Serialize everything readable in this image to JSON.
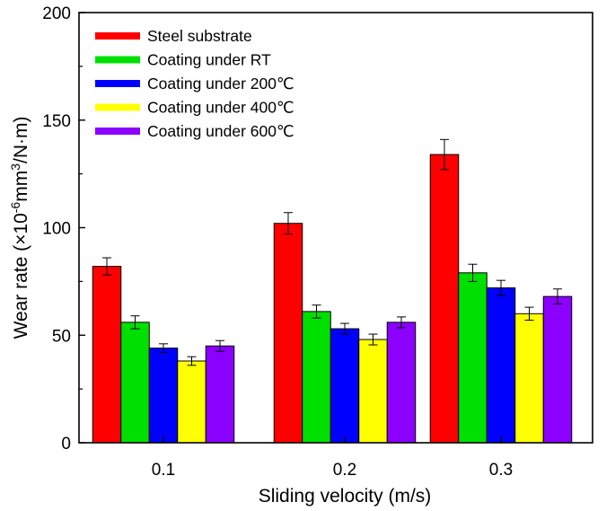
{
  "chart_data": {
    "type": "bar",
    "title": "",
    "xlabel": "Sliding velocity (m/s)",
    "ylabel": "Wear rate (×10",
    "ylabel_exp1": "-6",
    "ylabel_mid": "mm",
    "ylabel_exp2": "3",
    "ylabel_end": "/N·m)",
    "categories": [
      "0.1",
      "0.2",
      "0.3"
    ],
    "ylim": [
      0,
      200
    ],
    "yticks": [
      0,
      50,
      100,
      150,
      200
    ],
    "ytick_labels": [
      "0",
      "50",
      "100",
      "150",
      "200"
    ],
    "grid": false,
    "legend_position": "top-left",
    "series": [
      {
        "name": "Steel substrate",
        "color": "#ff0000",
        "values": [
          82,
          102,
          134
        ],
        "errors": [
          4,
          5,
          7
        ]
      },
      {
        "name": "Coating under RT",
        "color": "#00e000",
        "values": [
          56,
          61,
          79
        ],
        "errors": [
          3,
          3,
          4
        ]
      },
      {
        "name": "Coating under 200℃",
        "color": "#0000ff",
        "values": [
          44,
          53,
          72
        ],
        "errors": [
          2,
          2.5,
          3.5
        ]
      },
      {
        "name": "Coating under 400℃",
        "color": "#ffff00",
        "values": [
          38,
          48,
          60
        ],
        "errors": [
          2,
          2.5,
          3
        ]
      },
      {
        "name": "Coating under 600℃",
        "color": "#8b00ff",
        "values": [
          45,
          56,
          68
        ],
        "errors": [
          2.5,
          2.5,
          3.5
        ]
      }
    ]
  }
}
